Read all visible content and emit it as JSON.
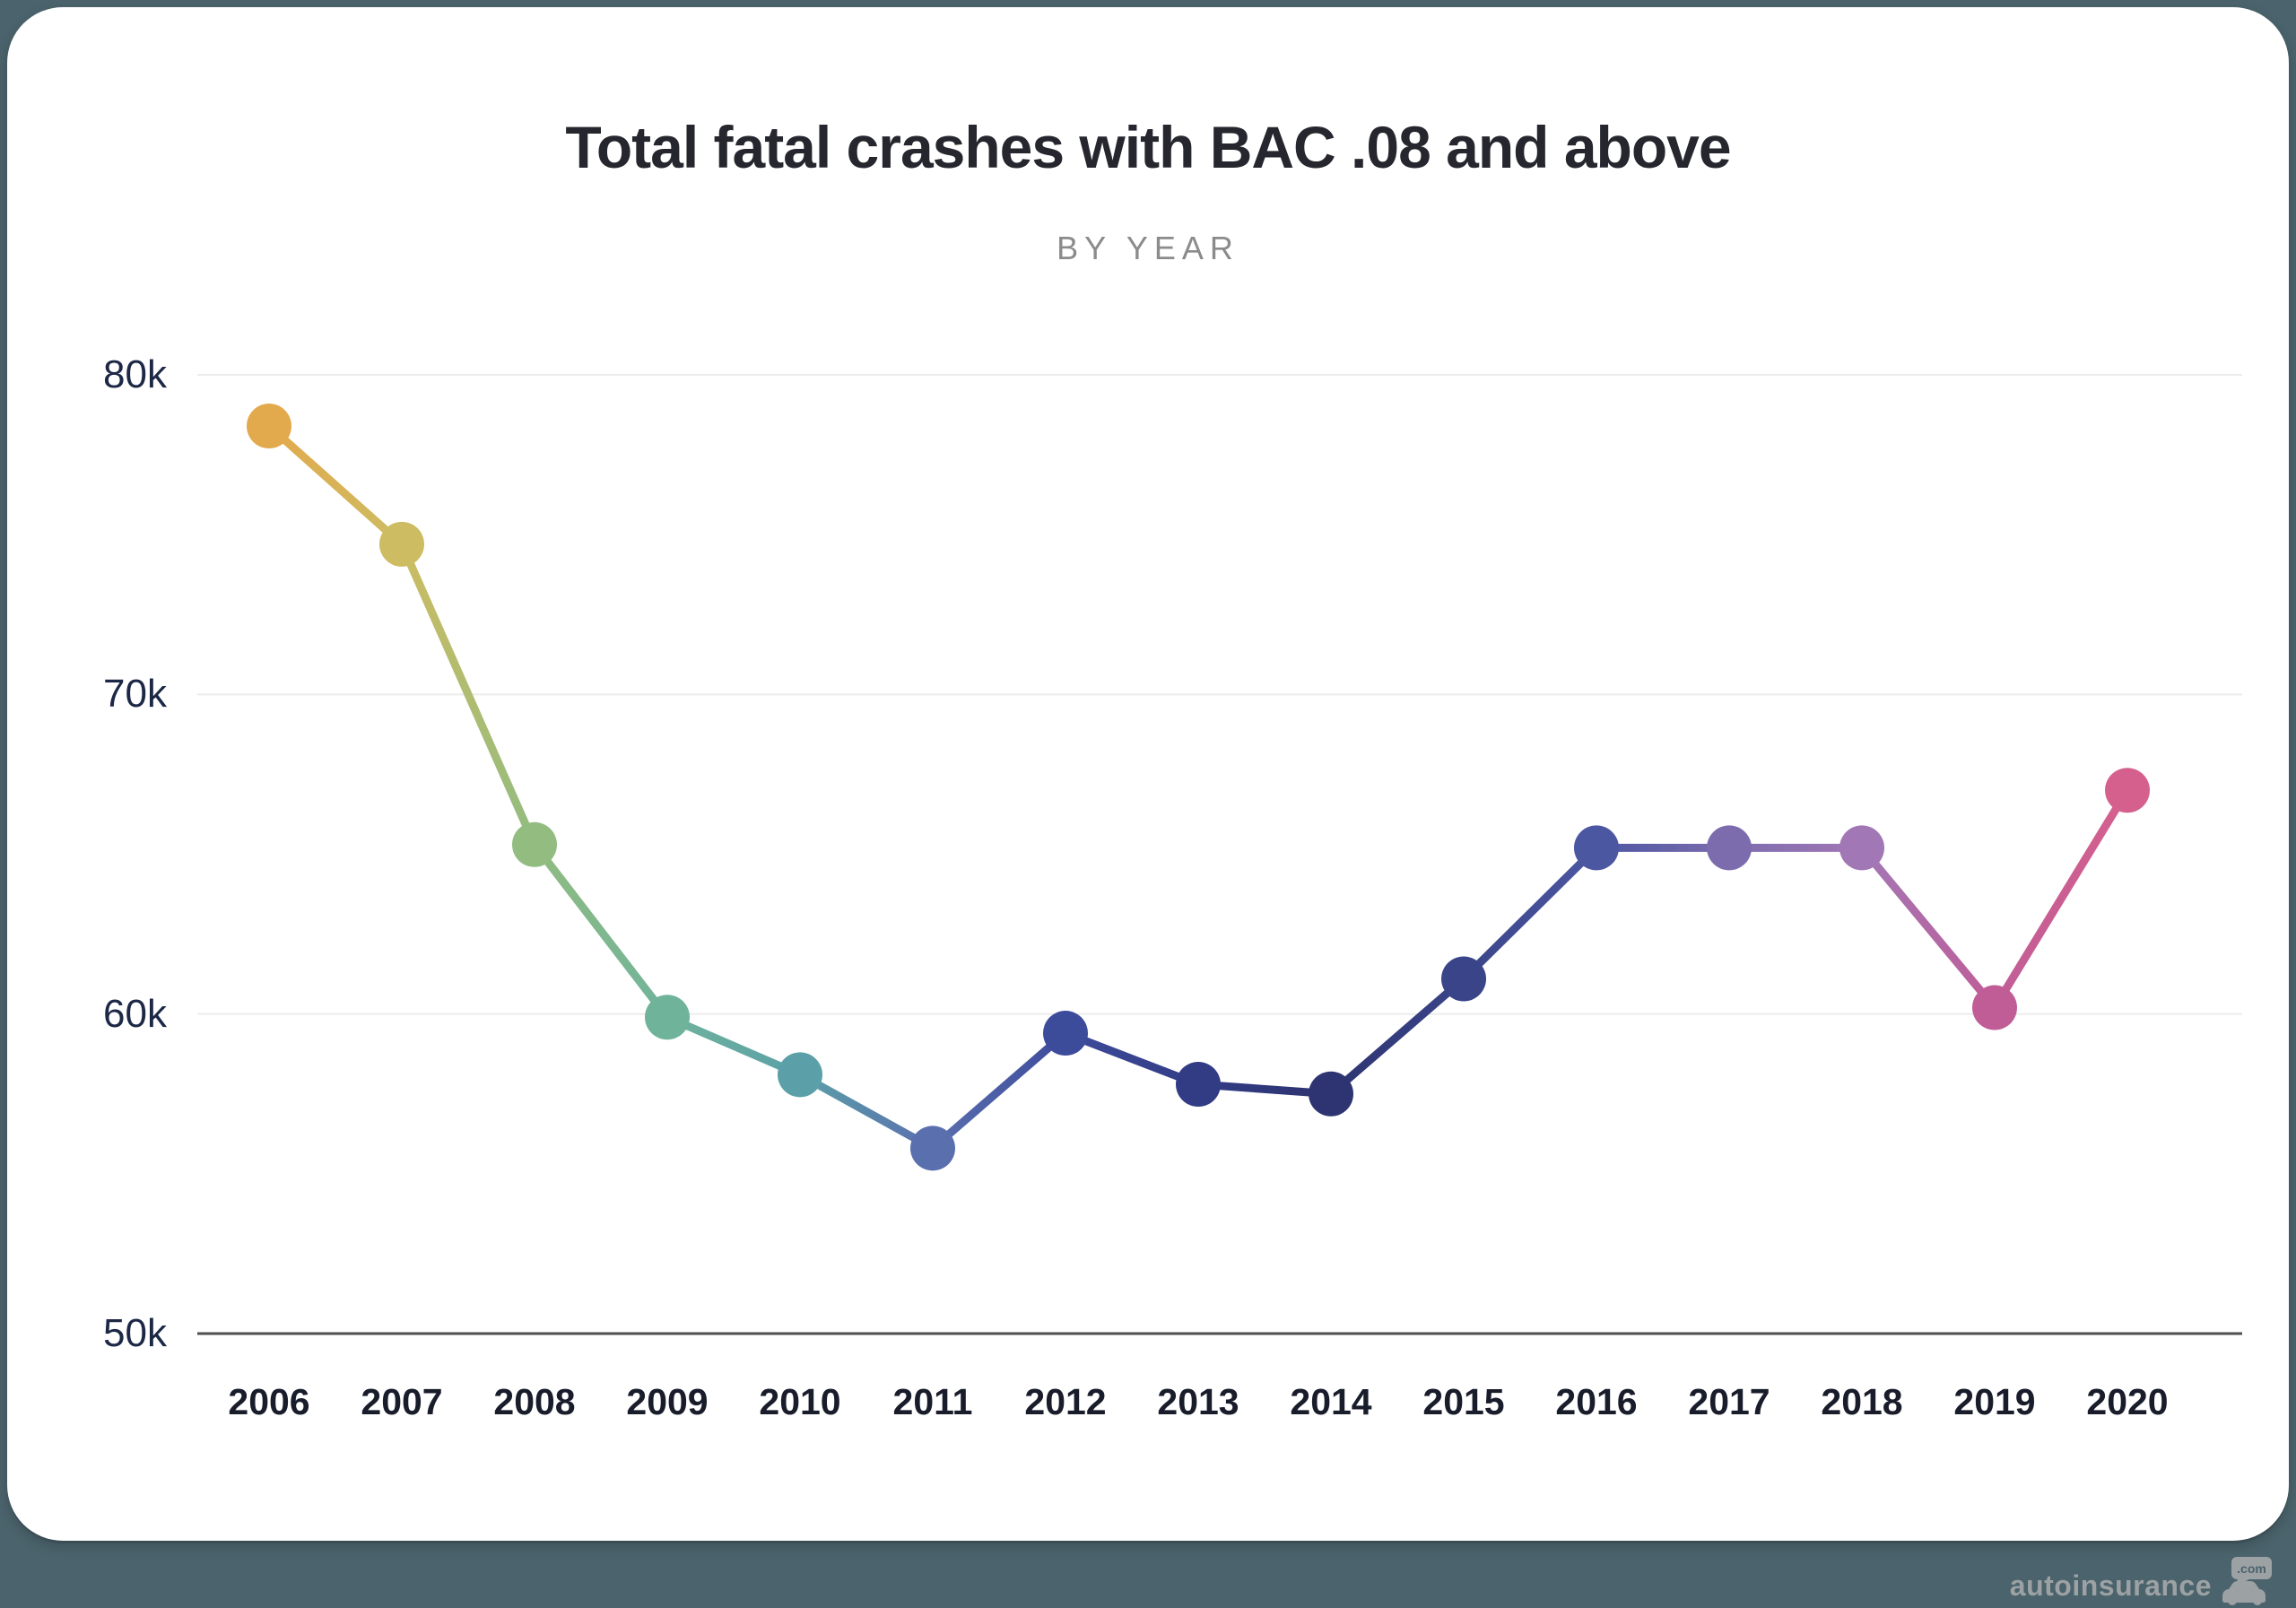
{
  "page": {
    "background_color": "#4b636c",
    "card_color": "#ffffff"
  },
  "header": {
    "title": "Total fatal crashes with BAC .08 and above",
    "subtitle": "BY YEAR"
  },
  "watermark": {
    "brand": "autoinsurance",
    "domain": ".com",
    "icon": "car-icon",
    "color": "#9ca1a3"
  },
  "chart_data": {
    "type": "line",
    "title": "Total fatal crashes with BAC .08 and above",
    "subtitle": "BY YEAR",
    "xlabel": "",
    "ylabel": "",
    "x": [
      2006,
      2007,
      2008,
      2009,
      2010,
      2011,
      2012,
      2013,
      2014,
      2015,
      2016,
      2017,
      2018,
      2019,
      2020
    ],
    "values": [
      78400,
      74700,
      65300,
      59900,
      58100,
      55800,
      59400,
      57800,
      57500,
      61100,
      65200,
      65200,
      65200,
      60200,
      67000
    ],
    "point_colors": [
      "#e3a94d",
      "#cdbc62",
      "#92bc80",
      "#6fb39b",
      "#5ba0a8",
      "#5a6fae",
      "#3d4b9b",
      "#323c85",
      "#2d3471",
      "#3a4589",
      "#4c57a2",
      "#7c6cae",
      "#a277b5",
      "#c05d97",
      "#d5608e"
    ],
    "ylim": [
      50000,
      80000
    ],
    "yticks": [
      {
        "label": "80k",
        "value": 80000
      },
      {
        "label": "70k",
        "value": 70000
      },
      {
        "label": "60k",
        "value": 60000
      },
      {
        "label": "50k",
        "value": 50000
      }
    ],
    "grid": "horizontal",
    "gridline_color": "#ececec",
    "axis_line_color": "#4f4f4f",
    "legend": "none",
    "marker_radius": 25,
    "line_width": 9
  }
}
